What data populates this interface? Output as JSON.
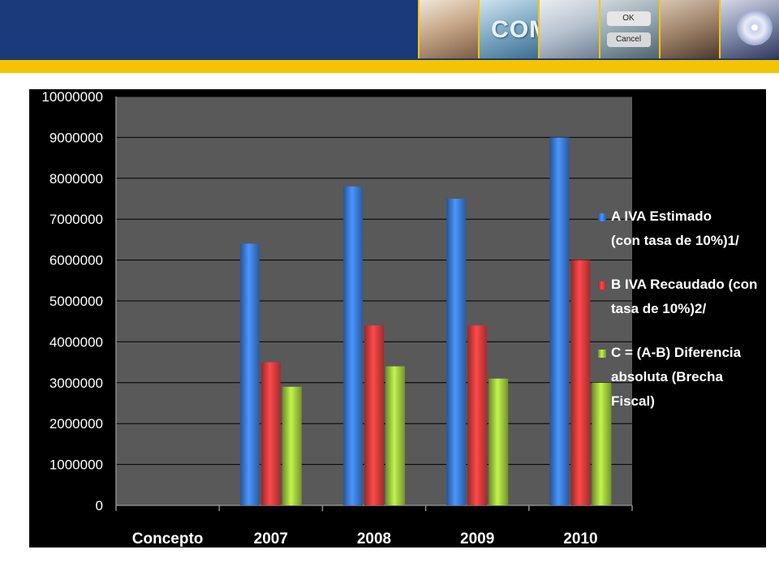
{
  "header": {
    "thumbnails": [
      {
        "icon": "call-center-agent-icon"
      },
      {
        "icon": "com-logo-icon",
        "text": "COM"
      },
      {
        "icon": "computer-mouse-icon"
      },
      {
        "icon": "ok-cancel-buttons-icon",
        "ok_label": "OK",
        "cancel_label": "Cancel"
      },
      {
        "icon": "typing-hands-icon"
      },
      {
        "icon": "cd-disc-icon"
      }
    ],
    "colors": {
      "banner": "#1b3a7c",
      "accent": "#f5c400"
    }
  },
  "chart_data": {
    "type": "bar",
    "categories": [
      "Concepto",
      "2007",
      "2008",
      "2009",
      "2010"
    ],
    "series": [
      {
        "name": "A IVA Estimado (con tasa de 10%)1/",
        "color": "#3a78d4",
        "values": [
          null,
          6400000,
          7800000,
          7500000,
          9000000
        ]
      },
      {
        "name": "B IVA Recaudado  (con tasa de 10%)2/",
        "color": "#d63a3a",
        "values": [
          null,
          3500000,
          4400000,
          4400000,
          6000000
        ]
      },
      {
        "name": "C = (A-B)  Diferencia absoluta (Brecha Fiscal)",
        "color": "#9bc43c",
        "values": [
          null,
          2900000,
          3400000,
          3100000,
          3000000
        ]
      }
    ],
    "legend_lines": [
      [
        "A IVA Estimado",
        "(con tasa de 10%)1/"
      ],
      [
        "B IVA Recaudado  (con",
        "tasa de 10%)2/"
      ],
      [
        "C = (A-B)  Diferencia",
        "absoluta (Brecha",
        "Fiscal)"
      ]
    ],
    "yticks": [
      "0",
      "1000000",
      "2000000",
      "3000000",
      "4000000",
      "5000000",
      "6000000",
      "7000000",
      "8000000",
      "9000000",
      "10000000"
    ],
    "ylim": [
      0,
      10000000
    ],
    "grid": true,
    "legend_position": "right",
    "background": "#000000",
    "plot_background": "#595959"
  }
}
